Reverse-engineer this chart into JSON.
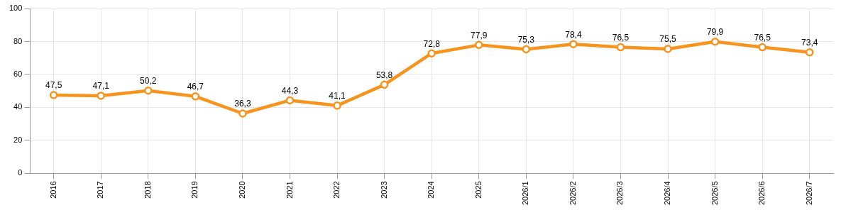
{
  "chart_data": {
    "type": "line",
    "categories": [
      "2016",
      "2017",
      "2018",
      "2019",
      "2020",
      "2021",
      "2022",
      "2023",
      "2024",
      "2025",
      "2026/1",
      "2026/2",
      "2026/3",
      "2026/4",
      "2026/5",
      "2026/6",
      "2026/7"
    ],
    "series": [
      {
        "color": "#f7941d",
        "values": [
          47.5,
          47.1,
          50.2,
          46.7,
          36.3,
          44.3,
          41.1,
          53.8,
          72.8,
          77.9,
          75.3,
          78.4,
          76.5,
          75.5,
          79.9,
          76.5,
          73.4
        ],
        "value_labels": [
          "47,5",
          "47,1",
          "50,2",
          "46,7",
          "36,3",
          "44,3",
          "41,1",
          "53,8",
          "72,8",
          "77,9",
          "75,3",
          "78,4",
          "76,5",
          "75,5",
          "79,9",
          "76,5",
          "73,4"
        ]
      }
    ],
    "ylim": [
      0,
      100
    ],
    "yticks": [
      0,
      20,
      40,
      60,
      80,
      100
    ],
    "grid": true,
    "legend": false,
    "marker": "circle",
    "line_style": "solid"
  }
}
